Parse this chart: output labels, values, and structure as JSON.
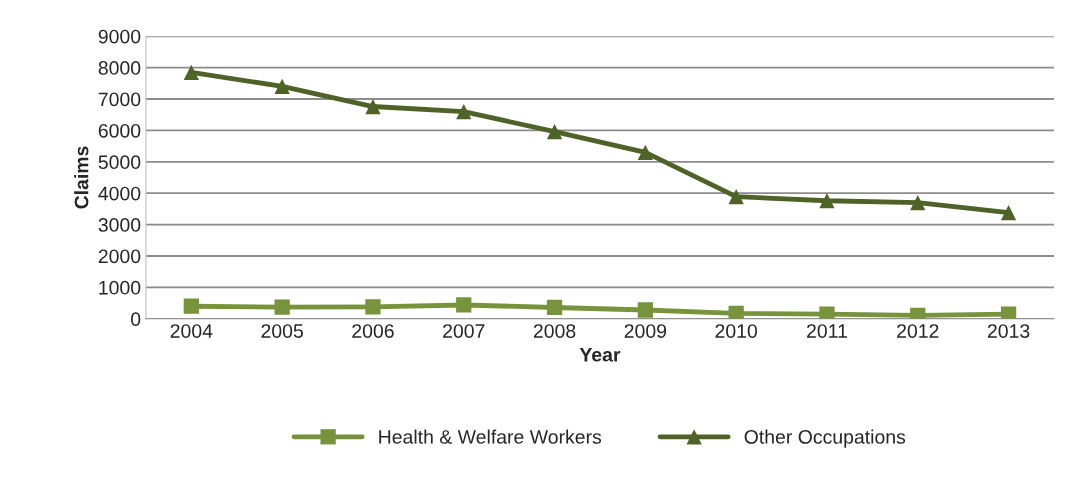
{
  "chart_data": {
    "type": "line",
    "xlabel": "Year",
    "ylabel": "Claims",
    "categories": [
      "2004",
      "2005",
      "2006",
      "2007",
      "2008",
      "2009",
      "2010",
      "2011",
      "2012",
      "2013"
    ],
    "series": [
      {
        "name": "Health & Welfare Workers",
        "color": "#77933c",
        "marker": "square",
        "values": [
          400,
          370,
          380,
          440,
          360,
          280,
          170,
          150,
          110,
          150
        ]
      },
      {
        "name": "Other Occupations",
        "color": "#4f6228",
        "marker": "triangle",
        "values": [
          7850,
          7400,
          6760,
          6600,
          5960,
          5300,
          3890,
          3760,
          3700,
          3380
        ]
      }
    ],
    "ylim": [
      0,
      9000
    ],
    "yticks": [
      0,
      1000,
      2000,
      3000,
      4000,
      5000,
      6000,
      7000,
      8000,
      9000
    ],
    "grid": "y",
    "legend": "bottom",
    "line_style": "solid"
  }
}
